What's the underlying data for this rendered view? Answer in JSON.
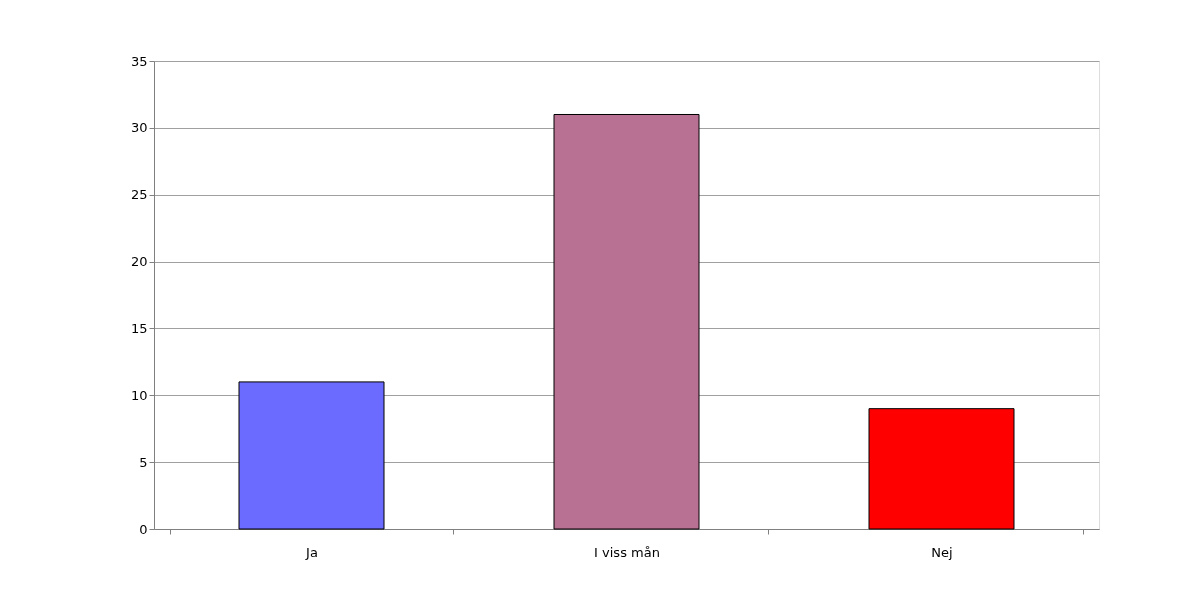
{
  "chart_data": {
    "type": "bar",
    "categories": [
      "Ja",
      "I viss mån",
      "Nej"
    ],
    "values": [
      11,
      31,
      9
    ],
    "colors": [
      "#6b6bff",
      "#b87093",
      "#ff0000"
    ],
    "ylim": [
      0,
      35
    ],
    "yticks": [
      0,
      5,
      10,
      15,
      20,
      25,
      30,
      35
    ],
    "grid": "y"
  }
}
